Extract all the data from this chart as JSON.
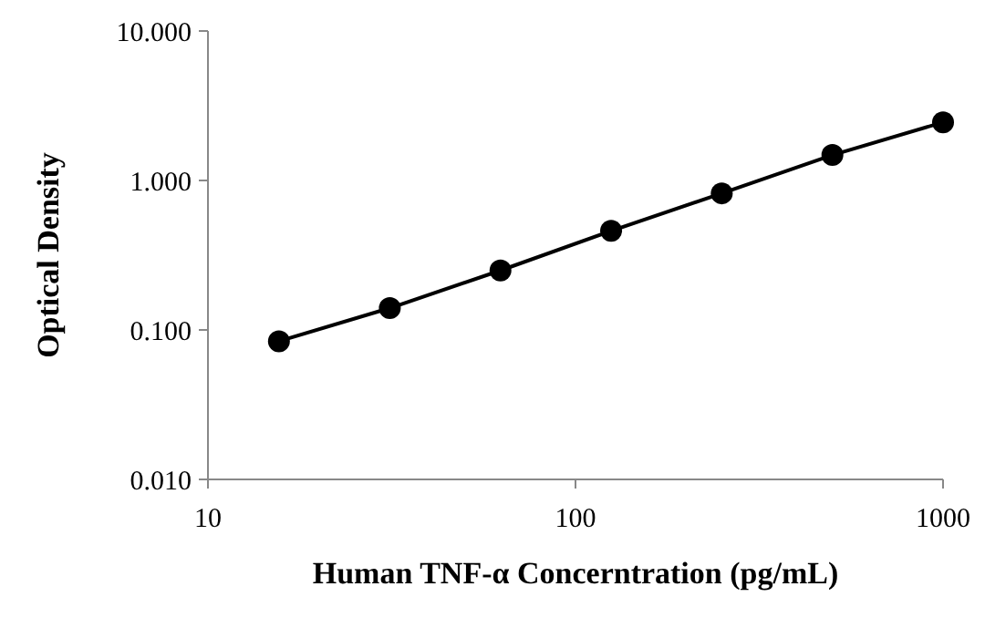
{
  "chart_data": {
    "type": "line",
    "xlabel": "Human TNF-α Concerntration (pg/mL)",
    "ylabel": "Optical Density",
    "series": [
      {
        "color": "#000000",
        "x": [
          15.6,
          31.25,
          62.5,
          125,
          250,
          500,
          1000
        ],
        "values": [
          0.084,
          0.14,
          0.25,
          0.46,
          0.82,
          1.48,
          2.45
        ]
      }
    ],
    "log": "xy",
    "marker": "circle",
    "line_style": "solid",
    "grid": false,
    "xlim": [
      10,
      1000
    ],
    "xticks": [
      10,
      100,
      1000
    ],
    "ylim": [
      0.01,
      10
    ],
    "yticks": [
      {
        "value": 0.01,
        "label": "0.010"
      },
      {
        "value": 0.1,
        "label": "0.100"
      },
      {
        "value": 1,
        "label": "1.000"
      },
      {
        "value": 10,
        "label": "10.000"
      }
    ]
  }
}
